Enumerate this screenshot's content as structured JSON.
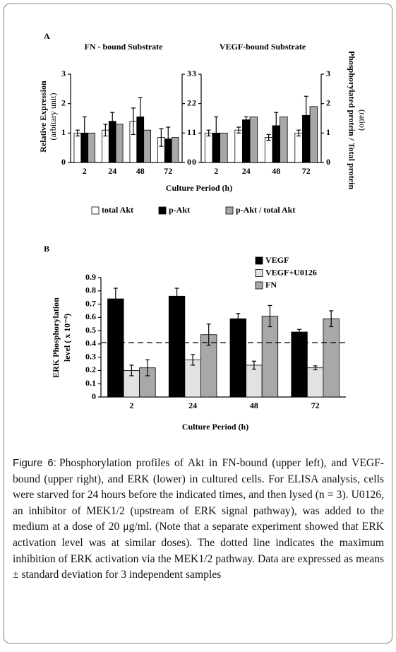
{
  "chart_data": [
    {
      "type": "bar",
      "panel": "A",
      "title": "FN - bound Substrate",
      "ylabel": "Relative Expression",
      "ylabel_sub": "(arbitary unit)",
      "xlabel": "Culture Period (h)",
      "categories": [
        "2",
        "24",
        "48",
        "72"
      ],
      "series": [
        {
          "name": "total Akt",
          "color": "#ffffff",
          "values": [
            1.0,
            1.1,
            1.4,
            0.85
          ],
          "errors": [
            0.1,
            0.2,
            0.45,
            0.3
          ]
        },
        {
          "name": "p-Akt",
          "color": "#000000",
          "values": [
            1.0,
            1.4,
            1.55,
            0.8
          ],
          "errors": [
            0.55,
            0.3,
            0.65,
            0.4
          ]
        },
        {
          "name": "p-Akt / total Akt",
          "color": "#a8a8a8",
          "axis": "y2",
          "values": [
            1.0,
            1.3,
            1.1,
            0.85
          ]
        }
      ],
      "ylim": [
        0,
        3
      ],
      "yticks": [
        0,
        1,
        2,
        3
      ],
      "y2lim": [
        0,
        3
      ],
      "y2ticks": [
        0,
        1,
        2,
        3
      ]
    },
    {
      "type": "bar",
      "title": "VEGF-bound Substrate",
      "y2label": "Phosphorylated protein / Total protein",
      "y2label_sub": "(ratio)",
      "categories": [
        "2",
        "24",
        "48",
        "72"
      ],
      "series": [
        {
          "color": "#ffffff",
          "values": [
            1.0,
            1.1,
            0.85,
            1.0
          ],
          "errors": [
            0.1,
            0.1,
            0.1,
            0.1
          ]
        },
        {
          "color": "#000000",
          "values": [
            1.0,
            1.45,
            1.25,
            1.6
          ],
          "errors": [
            0.55,
            0.1,
            0.45,
            0.65
          ]
        },
        {
          "color": "#a8a8a8",
          "axis": "y2",
          "values": [
            1.0,
            1.55,
            1.55,
            1.9
          ]
        }
      ],
      "ylim": [
        0,
        3
      ],
      "yticks": [
        0,
        1,
        2,
        3
      ],
      "y2lim": [
        0,
        3
      ],
      "y2ticks": [
        0,
        1,
        2,
        3
      ]
    },
    {
      "type": "bar",
      "panel": "B",
      "ylabel": "ERK Phosphorylation",
      "ylabel_sub": "level ( x 10⁻⁴)",
      "xlabel": "Culture Period (h)",
      "categories": [
        "2",
        "24",
        "48",
        "72"
      ],
      "series": [
        {
          "name": "VEGF",
          "color": "#000000",
          "values": [
            0.74,
            0.76,
            0.59,
            0.49
          ],
          "errors": [
            0.08,
            0.06,
            0.04,
            0.02
          ]
        },
        {
          "name": "VEGF+U0126",
          "color": "#e2e2e2",
          "values": [
            0.2,
            0.28,
            0.24,
            0.22
          ],
          "errors": [
            0.04,
            0.04,
            0.03,
            0.015
          ]
        },
        {
          "name": "FN",
          "color": "#a8a8a8",
          "values": [
            0.22,
            0.47,
            0.61,
            0.59
          ],
          "errors": [
            0.06,
            0.08,
            0.08,
            0.06
          ]
        }
      ],
      "ylim": [
        0,
        0.9
      ],
      "yticks": [
        0,
        0.1,
        0.2,
        0.3,
        0.4,
        0.5,
        0.6,
        0.7,
        0.8,
        0.9
      ],
      "reference_line": 0.41,
      "legend": "upper right"
    }
  ],
  "caption": {
    "label": "Figure 6:",
    "text": "Phosphorylation profiles of Akt in FN-bound (upper left), and VEGF-bound (upper right), and ERK (lower) in cultured cells. For ELISA analysis, cells were starved for 24 hours before the indicated times, and then lysed (n = 3). U0126, an inhibitor of MEK1/2 (upstream of ERK signal pathway), was added to the medium at a dose of 20 μg/ml. (Note that a separate experiment showed that ERK activation level was at similar doses). The dotted line indicates the maximum inhibition of ERK activation via the MEK1/2 pathway. Data are expressed as means ± standard deviation for 3 independent samples"
  }
}
